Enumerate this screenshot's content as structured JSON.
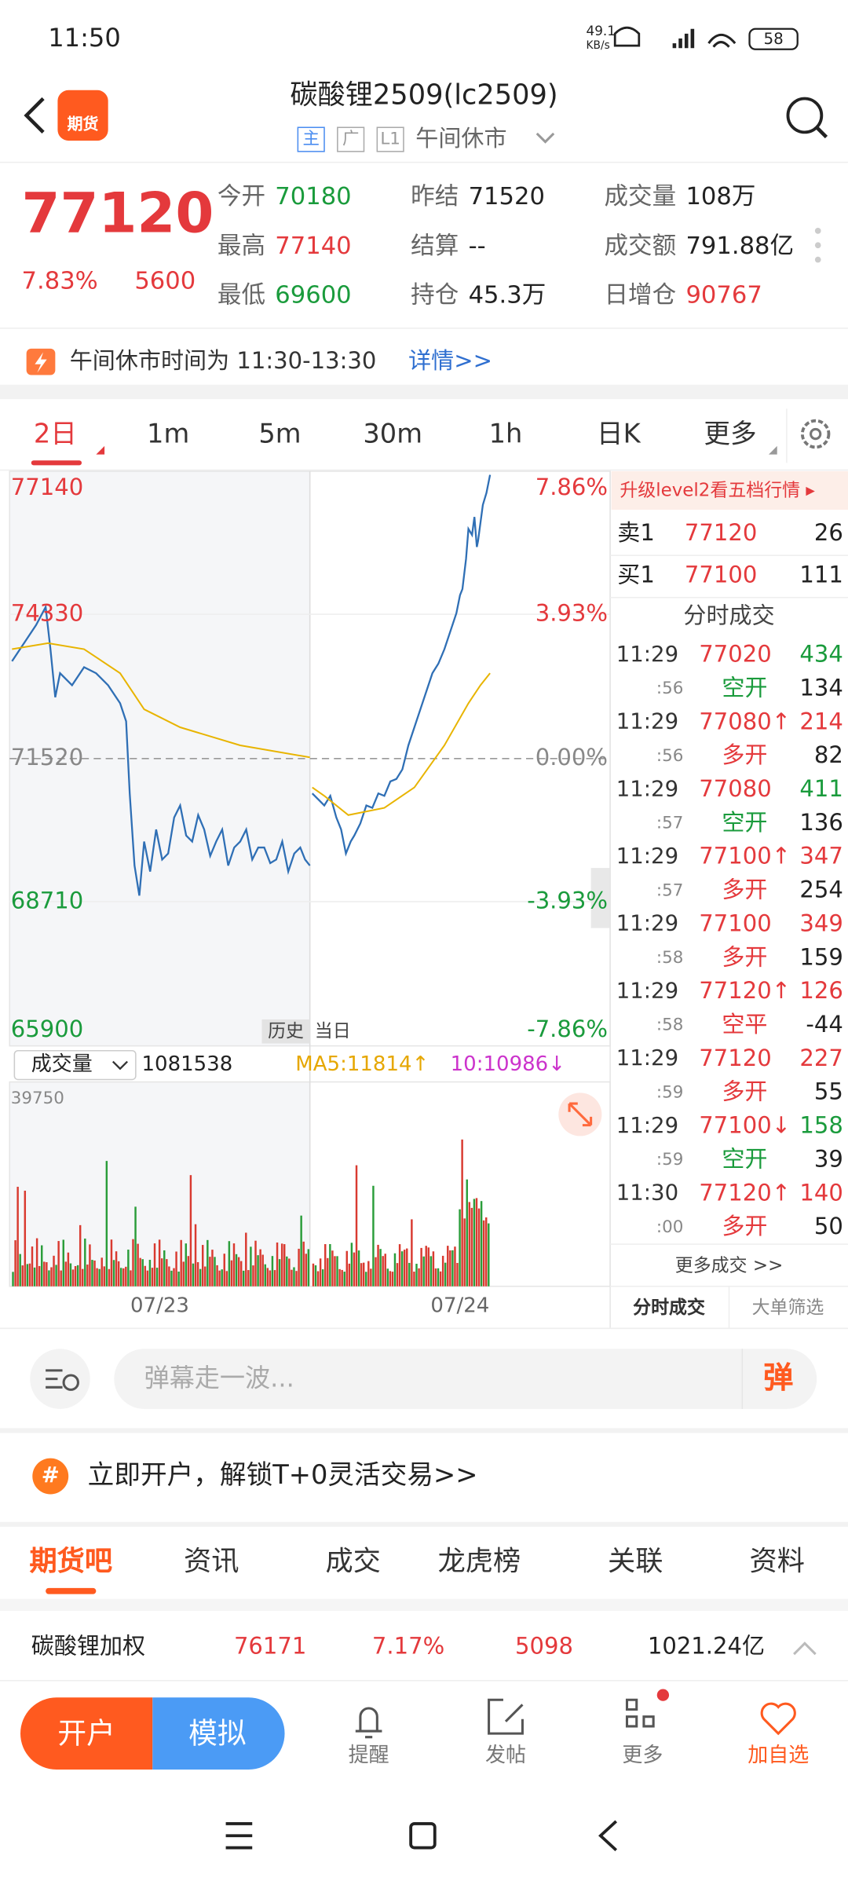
{
  "status_bar": {
    "time": "11:50",
    "net_speed": "49.1",
    "net_unit": "KB/s",
    "battery": "58"
  },
  "header": {
    "app_label": "期货",
    "title": "碳酸锂2509(lc2509)",
    "tags": [
      "主",
      "广",
      "L1"
    ],
    "market_status": "午间休市"
  },
  "quote": {
    "price": "77120",
    "change_pct": "7.83%",
    "change": "5600",
    "fields": [
      {
        "label": "今开",
        "value": "70180",
        "color": "#1a9b3c"
      },
      {
        "label": "昨结",
        "value": "71520",
        "color": "#222222"
      },
      {
        "label": "成交量",
        "value": "108万",
        "color": "#222222"
      },
      {
        "label": "最高",
        "value": "77140",
        "color": "#e4393c"
      },
      {
        "label": "结算",
        "value": "--",
        "color": "#222222"
      },
      {
        "label": "成交额",
        "value": "791.88亿",
        "color": "#222222"
      },
      {
        "label": "最低",
        "value": "69600",
        "color": "#1a9b3c"
      },
      {
        "label": "持仓",
        "value": "45.3万",
        "color": "#222222"
      },
      {
        "label": "日增仓",
        "value": "90767",
        "color": "#e4393c"
      }
    ]
  },
  "notice": {
    "text": "午间休市时间为 11:30-13:30",
    "link": "详情>>"
  },
  "period_tabs": [
    "2日",
    "1m",
    "5m",
    "30m",
    "1h",
    "日K",
    "更多"
  ],
  "selected_tab": 0,
  "chart": {
    "price_labels": [
      "77140",
      "74330",
      "71520",
      "68710",
      "65900"
    ],
    "pct_labels": [
      "7.86%",
      "3.93%",
      "0.00%",
      "-3.93%",
      "-7.86%"
    ],
    "label_colors": [
      "#e4393c",
      "#e4393c",
      "#888888",
      "#1a9b3c",
      "#1a9b3c"
    ],
    "history_tag": "历史",
    "today_tag": "当日",
    "volume_selector": "成交量",
    "volume": "1081538",
    "ma5": "MA5:11814↑",
    "ma10": "10:10986↓",
    "volume_max": "39750",
    "dates": [
      "07/23",
      "07/24"
    ]
  },
  "side_panel": {
    "banner": "升级level2看五档行情 ▸",
    "ask": {
      "label": "卖1",
      "price": "77120",
      "qty": "26"
    },
    "bid": {
      "label": "买1",
      "price": "77100",
      "qty": "111"
    },
    "title": "分时成交",
    "trades": [
      {
        "time": "11:29",
        "second": ":56",
        "price": "77020",
        "volume": "434",
        "kind": "空开",
        "change": "134",
        "color": "#1a9b3c"
      },
      {
        "time": "11:29",
        "second": ":56",
        "price": "77080↑",
        "volume": "214",
        "kind": "多开",
        "change": "82",
        "color": "#e4393c"
      },
      {
        "time": "11:29",
        "second": ":57",
        "price": "77080",
        "volume": "411",
        "kind": "空开",
        "change": "136",
        "color": "#1a9b3c"
      },
      {
        "time": "11:29",
        "second": ":57",
        "price": "77100↑",
        "volume": "347",
        "kind": "多开",
        "change": "254",
        "color": "#e4393c"
      },
      {
        "time": "11:29",
        "second": ":58",
        "price": "77100",
        "volume": "349",
        "kind": "多开",
        "change": "159",
        "color": "#e4393c"
      },
      {
        "time": "11:29",
        "second": ":58",
        "price": "77120↑",
        "volume": "126",
        "kind": "空平",
        "change": "-44",
        "color": "#e4393c"
      },
      {
        "time": "11:29",
        "second": ":59",
        "price": "77120",
        "volume": "227",
        "kind": "多开",
        "change": "55",
        "color": "#e4393c"
      },
      {
        "time": "11:29",
        "second": ":59",
        "price": "77100↓",
        "volume": "158",
        "kind": "空开",
        "change": "39",
        "color": "#1a9b3c"
      },
      {
        "time": "11:30",
        "second": ":00",
        "price": "77120↑",
        "volume": "140",
        "kind": "多开",
        "change": "50",
        "color": "#e4393c"
      }
    ],
    "more": "更多成交 >>",
    "tabs": [
      "分时成交",
      "大单筛选"
    ]
  },
  "comment": {
    "placeholder": "弹幕走一波...",
    "button": "弹"
  },
  "promo": {
    "icon": "#",
    "text": "立即开户，解锁T+0灵活交易>>"
  },
  "nav_tabs": [
    "期货吧",
    "资讯",
    "成交",
    "龙虎榜",
    "关联",
    "资料"
  ],
  "ticker": {
    "name": "碳酸锂加权",
    "price": "76171",
    "change_pct": "7.17%",
    "change": "5098",
    "turnover": "1021.24亿"
  },
  "bottom_bar": {
    "open_account": "开户",
    "simulate": "模拟",
    "items": [
      "提醒",
      "发帖",
      "更多",
      "加自选"
    ]
  }
}
